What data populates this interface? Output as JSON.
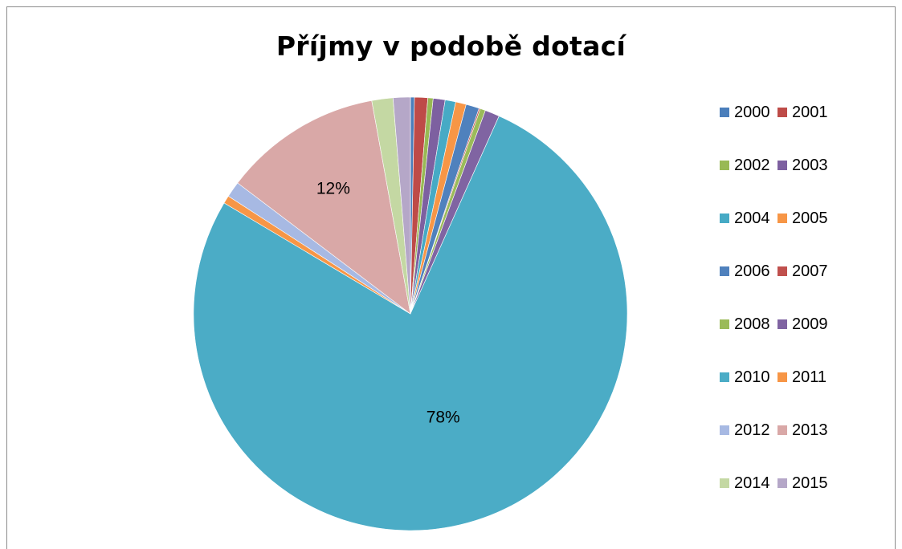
{
  "chart_data": {
    "type": "pie",
    "title": "Příjmy v podobě dotací",
    "categories": [
      "2000",
      "2001",
      "2002",
      "2003",
      "2004",
      "2005",
      "2006",
      "2007",
      "2008",
      "2009",
      "2010",
      "2011",
      "2012",
      "2013",
      "2014",
      "2015"
    ],
    "values": [
      0.3,
      1.0,
      0.4,
      0.9,
      0.8,
      0.8,
      1.0,
      0.1,
      0.4,
      1.1,
      78.0,
      0.6,
      1.2,
      12.0,
      1.6,
      1.3
    ],
    "colors": [
      "#4a7ebb",
      "#be4b48",
      "#98b954",
      "#7d60a0",
      "#46aac5",
      "#f79646",
      "#4f81bd",
      "#c0504d",
      "#9bbb59",
      "#8064a2",
      "#4bacc6",
      "#f79646",
      "#a7b9e3",
      "#d9a8a7",
      "#c4d8a3",
      "#b5a7c8"
    ],
    "data_labels": [
      {
        "index": 10,
        "text": "78%"
      },
      {
        "index": 13,
        "text": "12%"
      }
    ],
    "legend_position": "right"
  }
}
